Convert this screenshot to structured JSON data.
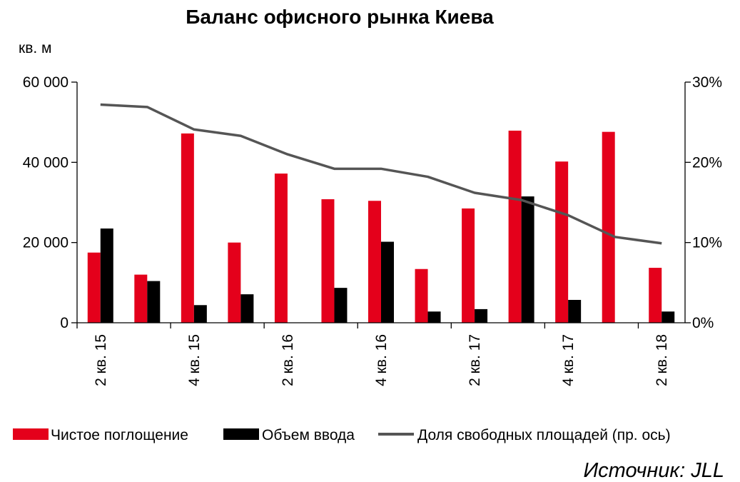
{
  "chart_data": {
    "type": "bar",
    "title": "Баланс офисного рынка Киева",
    "y_unit": "кв. м",
    "y_ticks": [
      "60 000",
      "40 000",
      "20 000",
      "0"
    ],
    "y2_ticks": [
      "30%",
      "20%",
      "10%",
      "0%"
    ],
    "ylim": [
      0,
      60000
    ],
    "y2lim": [
      0,
      30
    ],
    "x_tick_labels": [
      "2 кв. 15",
      "4 кв. 15",
      "2 кв. 16",
      "4 кв. 16",
      "2 кв. 17",
      "4 кв. 17",
      "2 кв. 18"
    ],
    "x_label_every": 2,
    "categories_count": 13,
    "series": [
      {
        "name": "Чистое поглощение",
        "kind": "bar",
        "color": "#e4001b",
        "values": [
          17500,
          12000,
          47200,
          20000,
          37200,
          30800,
          30400,
          13400,
          28500,
          47900,
          40200,
          47600,
          13700
        ]
      },
      {
        "name": "Объем ввода",
        "kind": "bar",
        "color": "#000000",
        "values": [
          23500,
          10400,
          4400,
          7100,
          0,
          8700,
          20200,
          2800,
          3400,
          31500,
          5700,
          0,
          2800
        ]
      },
      {
        "name": "Доля свободных площадей (пр. ось)",
        "kind": "line",
        "axis": "right",
        "color": "#555555",
        "values": [
          27.2,
          26.9,
          24.1,
          23.3,
          21.0,
          19.2,
          19.2,
          18.2,
          16.2,
          15.3,
          13.4,
          10.7,
          9.9
        ]
      }
    ],
    "legend_position": "bottom",
    "grid": false
  },
  "source": "Источник: JLL"
}
